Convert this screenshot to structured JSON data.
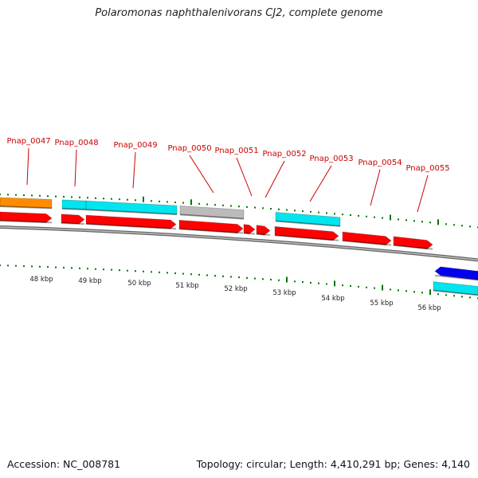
{
  "title": "Polaromonas naphthalenivorans CJ2, complete genome",
  "footer": {
    "accession": "Accession: NC_008781",
    "summary": "Topology: circular; Length: 4,410,291 bp; Genes: 4,140"
  },
  "ticks": [
    {
      "label": "48 kbp",
      "kbp": 48
    },
    {
      "label": "49 kbp",
      "kbp": 49
    },
    {
      "label": "50 kbp",
      "kbp": 50
    },
    {
      "label": "51 kbp",
      "kbp": 51
    },
    {
      "label": "52 kbp",
      "kbp": 52
    },
    {
      "label": "53 kbp",
      "kbp": 53
    },
    {
      "label": "54 kbp",
      "kbp": 54
    },
    {
      "label": "55 kbp",
      "kbp": 55
    },
    {
      "label": "56 kbp",
      "kbp": 56
    }
  ],
  "gene_labels": [
    "Pnap_0047",
    "Pnap_0048",
    "Pnap_0049",
    "Pnap_0050",
    "Pnap_0051",
    "Pnap_0052",
    "Pnap_0053",
    "Pnap_0054",
    "Pnap_0055"
  ],
  "colors": {
    "cds": "#ff0000",
    "cyan_feature": "#00e5ee",
    "orange_feature": "#ff8c00",
    "grey_feature": "#bbbbbb",
    "blue_feature": "#0000ee",
    "backbone": "#888888",
    "tick": "#007700",
    "label_text": "#cc0000"
  }
}
